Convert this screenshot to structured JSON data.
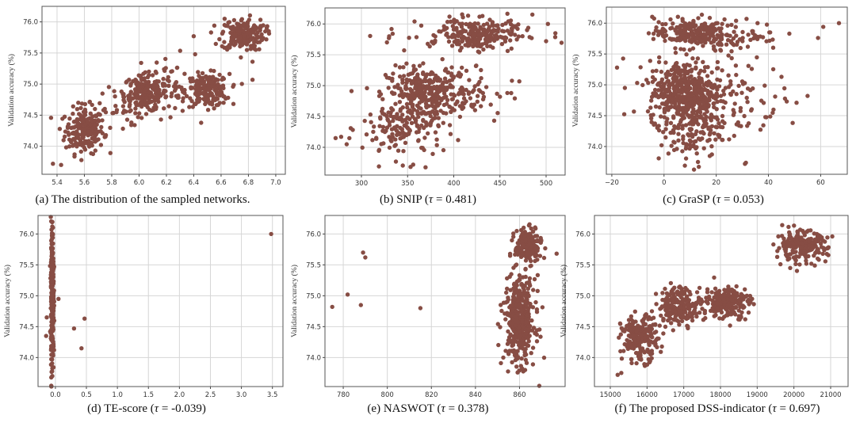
{
  "point_color": "#874d44",
  "chart_data": [
    {
      "type": "scatter",
      "caption": "(a) The distribution of the sampled networks.",
      "ylabel": "Validation accuracy (%)",
      "xlim": [
        5.29,
        7.07
      ],
      "ylim": [
        73.55,
        76.25
      ],
      "xticks": [
        "5.4",
        "5.6",
        "5.8",
        "6.0",
        "6.2",
        "6.4",
        "6.6",
        "6.8",
        "7.0"
      ],
      "yticks": [
        "74.0",
        "74.5",
        "75.0",
        "75.5",
        "76.0"
      ],
      "grid": true,
      "clusters": [
        {
          "x": 5.6,
          "y": 74.25,
          "sx": 0.07,
          "sy": 0.18,
          "n": 200
        },
        {
          "x": 6.05,
          "y": 74.85,
          "sx": 0.08,
          "sy": 0.15,
          "n": 200
        },
        {
          "x": 6.5,
          "y": 74.9,
          "sx": 0.08,
          "sy": 0.13,
          "n": 200
        },
        {
          "x": 6.76,
          "y": 75.8,
          "sx": 0.08,
          "sy": 0.13,
          "n": 200
        },
        {
          "x": 5.8,
          "y": 74.6,
          "sx": 0.1,
          "sy": 0.2,
          "n": 40
        },
        {
          "x": 6.25,
          "y": 75.0,
          "sx": 0.06,
          "sy": 0.25,
          "n": 30
        }
      ],
      "points": [
        [
          5.37,
          73.72
        ],
        [
          5.43,
          73.7
        ],
        [
          5.42,
          74.28
        ],
        [
          6.16,
          74.43
        ],
        [
          6.4,
          75.77
        ],
        [
          6.41,
          75.48
        ],
        [
          6.83,
          75.36
        ],
        [
          6.83,
          75.07
        ]
      ]
    },
    {
      "type": "scatter",
      "caption": "(b) SNIP (τ = 0.481)",
      "ylabel": "Validation accuracy (%)",
      "xlim": [
        260.5,
        520.6
      ],
      "ylim": [
        73.55,
        76.26
      ],
      "xticks": [
        "300",
        "350",
        "400",
        "450",
        "500"
      ],
      "yticks": [
        "74.0",
        "74.5",
        "75.0",
        "75.5",
        "76.0"
      ],
      "grid": true,
      "clusters": [
        {
          "x": 372,
          "y": 74.88,
          "sx": 22,
          "sy": 0.2,
          "n": 300
        },
        {
          "x": 345,
          "y": 74.3,
          "sx": 22,
          "sy": 0.25,
          "n": 150
        },
        {
          "x": 425,
          "y": 75.82,
          "sx": 20,
          "sy": 0.12,
          "n": 200
        },
        {
          "x": 405,
          "y": 75.85,
          "sx": 40,
          "sy": 0.15,
          "n": 50
        },
        {
          "x": 410,
          "y": 74.9,
          "sx": 25,
          "sy": 0.25,
          "n": 60
        }
      ],
      "points": [
        [
          272,
          74.15
        ],
        [
          278,
          74.17
        ],
        [
          284,
          74.05
        ],
        [
          330,
          75.8
        ],
        [
          502,
          76.0
        ],
        [
          510,
          75.85
        ],
        [
          500,
          75.72
        ],
        [
          458,
          74.88
        ],
        [
          471,
          75.07
        ],
        [
          463,
          75.08
        ],
        [
          450,
          74.82
        ],
        [
          319,
          73.69
        ],
        [
          356,
          73.72
        ]
      ]
    },
    {
      "type": "scatter",
      "caption": "(c) GraSP (τ = 0.053)",
      "ylabel": "Validation accuracy (%)",
      "xlim": [
        -22.1,
        70.2
      ],
      "ylim": [
        73.55,
        76.26
      ],
      "xticks": [
        "−20",
        "0",
        "20",
        "40",
        "60"
      ],
      "yticks": [
        "74.0",
        "74.5",
        "75.0",
        "75.5",
        "76.0"
      ],
      "grid": true,
      "clusters": [
        {
          "x": 8,
          "y": 74.9,
          "sx": 7,
          "sy": 0.25,
          "n": 400
        },
        {
          "x": 10,
          "y": 74.3,
          "sx": 6,
          "sy": 0.3,
          "n": 150
        },
        {
          "x": 10,
          "y": 75.85,
          "sx": 7,
          "sy": 0.12,
          "n": 200
        },
        {
          "x": 25,
          "y": 75.8,
          "sx": 10,
          "sy": 0.12,
          "n": 80
        },
        {
          "x": 25,
          "y": 74.8,
          "sx": 10,
          "sy": 0.35,
          "n": 100
        }
      ],
      "points": [
        [
          -18,
          75.28
        ],
        [
          -15,
          74.95
        ],
        [
          67,
          76.0
        ],
        [
          61,
          75.94
        ],
        [
          59,
          75.76
        ],
        [
          55,
          74.82
        ],
        [
          47,
          74.73
        ],
        [
          48,
          75.83
        ],
        [
          8,
          73.69
        ],
        [
          31,
          73.72
        ],
        [
          45,
          75.13
        ]
      ]
    },
    {
      "type": "scatter",
      "caption": "(d) TE-score (τ = -0.039)",
      "ylabel": "Validation accuracy (%)",
      "xlim": [
        -0.28,
        3.67
      ],
      "ylim": [
        73.53,
        76.3
      ],
      "xticks": [
        "0.0",
        "0.5",
        "1.0",
        "1.5",
        "2.0",
        "2.5",
        "3.0",
        "3.5"
      ],
      "yticks": [
        "74.0",
        "74.5",
        "75.0",
        "75.5",
        "76.0"
      ],
      "grid": true,
      "clusters": [
        {
          "x": -0.05,
          "y": 74.95,
          "sx": 0.012,
          "sy": 0.6,
          "n": 300
        }
      ],
      "points": [
        [
          3.48,
          76.0
        ],
        [
          0.47,
          74.63
        ],
        [
          0.42,
          74.15
        ],
        [
          0.3,
          74.47
        ],
        [
          -0.14,
          74.65
        ],
        [
          -0.15,
          74.35
        ],
        [
          0.05,
          74.95
        ],
        [
          -0.05,
          76.12
        ],
        [
          -0.05,
          73.7
        ]
      ]
    },
    {
      "type": "scatter",
      "caption": "(e) NASWOT (τ = 0.378)",
      "ylabel": "Validation accuracy (%)",
      "xlim": [
        771.7,
        880.7
      ],
      "ylim": [
        73.53,
        76.3
      ],
      "xticks": [
        "780",
        "800",
        "820",
        "840",
        "860"
      ],
      "yticks": [
        "74.0",
        "74.5",
        "75.0",
        "75.5",
        "76.0"
      ],
      "grid": true,
      "clusters": [
        {
          "x": 860,
          "y": 74.6,
          "sx": 3.5,
          "sy": 0.35,
          "n": 400
        },
        {
          "x": 864,
          "y": 75.8,
          "sx": 3,
          "sy": 0.13,
          "n": 200
        }
      ],
      "points": [
        [
          775,
          74.82
        ],
        [
          782,
          75.02
        ],
        [
          788,
          74.85
        ],
        [
          789,
          75.7
        ],
        [
          790,
          75.62
        ],
        [
          815,
          74.8
        ]
      ]
    },
    {
      "type": "scatter",
      "caption": "(f) The proposed DSS-indicator (τ = 0.697)",
      "ylabel": "Validation accuracy (%)",
      "xlim": [
        14568,
        21475
      ],
      "ylim": [
        73.53,
        76.3
      ],
      "xticks": [
        "15000",
        "16000",
        "17000",
        "18000",
        "19000",
        "20000",
        "21000"
      ],
      "yticks": [
        "74.0",
        "74.5",
        "75.0",
        "75.5",
        "76.0"
      ],
      "grid": true,
      "clusters": [
        {
          "x": 15800,
          "y": 74.3,
          "sx": 250,
          "sy": 0.18,
          "n": 200
        },
        {
          "x": 16900,
          "y": 74.85,
          "sx": 300,
          "sy": 0.15,
          "n": 200
        },
        {
          "x": 18200,
          "y": 74.9,
          "sx": 300,
          "sy": 0.13,
          "n": 200
        },
        {
          "x": 20200,
          "y": 75.8,
          "sx": 350,
          "sy": 0.12,
          "n": 200
        }
      ],
      "points": [
        [
          15200,
          73.72
        ],
        [
          15300,
          73.75
        ],
        [
          19900,
          75.45
        ]
      ]
    }
  ]
}
